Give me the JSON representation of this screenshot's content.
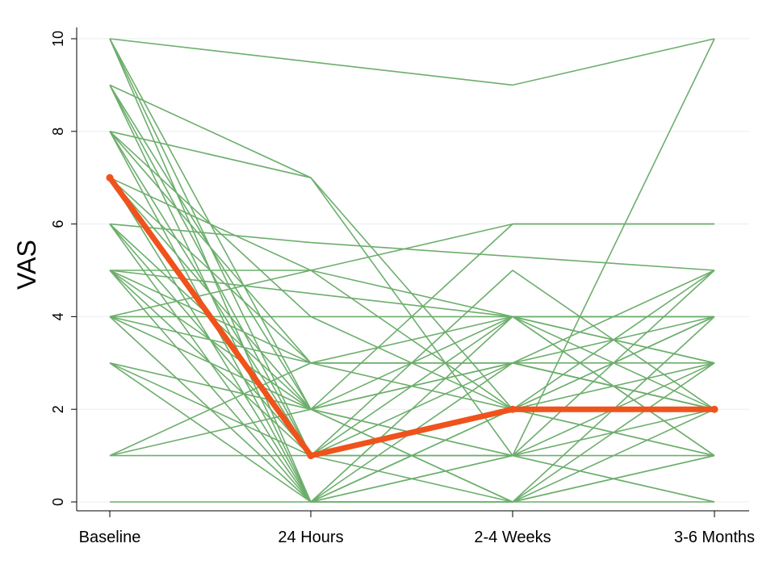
{
  "chart_data": {
    "type": "line",
    "title": "",
    "xlabel": "",
    "ylabel": "VAS",
    "categories": [
      "Baseline",
      "24 Hours",
      "2-4 Weeks",
      "3-6 Months"
    ],
    "y_ticks": [
      "0",
      "2",
      "4",
      "6",
      "8",
      "10"
    ],
    "ylim": [
      0,
      10
    ],
    "grid": "horizontal",
    "individual_color": "#6cae6c",
    "mean_color": "#f0521c",
    "individuals": [
      [
        10,
        9.5,
        9,
        10
      ],
      [
        10,
        0,
        2,
        1
      ],
      [
        10,
        1,
        3,
        2
      ],
      [
        10,
        2,
        1,
        0
      ],
      [
        9,
        7,
        2,
        2
      ],
      [
        9,
        0,
        4,
        3
      ],
      [
        9,
        2,
        6,
        6
      ],
      [
        9,
        1,
        0,
        4
      ],
      [
        8,
        7,
        1,
        3
      ],
      [
        8,
        4,
        2,
        5
      ],
      [
        8,
        3,
        3,
        2
      ],
      [
        8,
        0,
        0,
        1
      ],
      [
        8,
        1,
        5,
        2
      ],
      [
        7,
        5,
        4,
        2
      ],
      [
        7,
        2,
        3,
        4
      ],
      [
        7,
        3,
        4,
        1
      ],
      [
        7,
        0,
        1,
        10
      ],
      [
        6,
        5.6,
        5.3,
        5
      ],
      [
        6,
        2,
        4,
        3
      ],
      [
        6,
        1,
        2,
        4
      ],
      [
        6,
        0,
        3,
        5
      ],
      [
        5,
        4.5,
        4,
        4
      ],
      [
        5,
        3,
        3,
        2
      ],
      [
        5,
        2,
        0,
        1
      ],
      [
        5,
        5,
        6,
        6
      ],
      [
        5,
        0,
        2,
        3
      ],
      [
        5,
        1,
        1,
        2
      ],
      [
        4,
        4,
        4,
        4
      ],
      [
        4,
        3,
        3,
        3
      ],
      [
        4,
        2,
        1,
        0
      ],
      [
        4,
        5,
        2,
        4
      ],
      [
        4,
        0,
        0,
        2
      ],
      [
        3,
        2,
        3,
        2
      ],
      [
        3,
        0,
        1,
        5
      ],
      [
        3,
        1,
        4,
        1
      ],
      [
        1,
        1,
        1,
        1
      ],
      [
        1,
        2,
        0,
        3
      ],
      [
        1,
        3,
        2,
        1
      ],
      [
        0,
        0,
        0,
        0
      ]
    ],
    "series": [
      {
        "values": [
          7,
          1,
          2,
          2
        ]
      }
    ]
  }
}
